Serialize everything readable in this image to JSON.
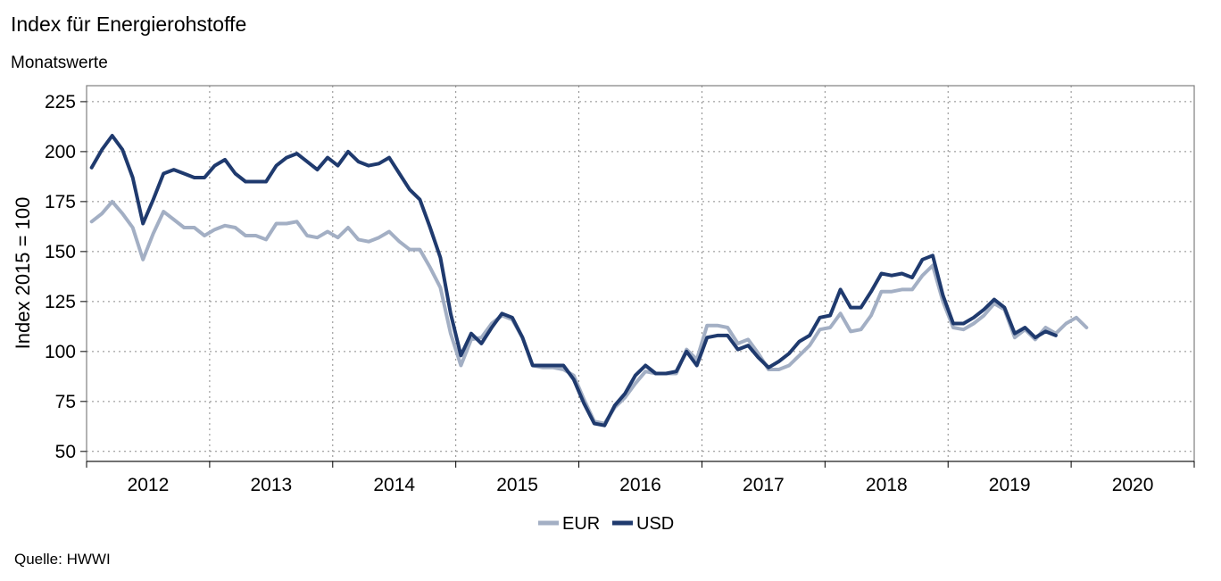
{
  "header": {
    "title": "Index für Energierohstoffe",
    "subtitle": "Monatswerte"
  },
  "footer": {
    "source": "Quelle: HWWI"
  },
  "chart_data": {
    "type": "line",
    "ylabel": "Index 2015 = 100",
    "ylim": [
      45,
      233
    ],
    "y_ticks": [
      50,
      75,
      100,
      125,
      150,
      175,
      200,
      225
    ],
    "x_range": [
      "2012-01",
      "2020-12"
    ],
    "x_tick_labels": [
      "2012",
      "2013",
      "2014",
      "2015",
      "2016",
      "2017",
      "2018",
      "2019",
      "2020"
    ],
    "grid": true,
    "legend_position": "bottom-center",
    "series": [
      {
        "name": "EUR",
        "color": "#a3afc4",
        "start": "2012-01",
        "values": [
          165,
          169,
          175,
          169,
          162,
          146,
          159,
          170,
          166,
          162,
          162,
          158,
          161,
          163,
          162,
          158,
          158,
          156,
          164,
          164,
          165,
          158,
          157,
          160,
          157,
          162,
          156,
          155,
          157,
          160,
          155,
          151,
          151,
          142,
          132,
          109,
          93,
          106,
          107,
          114,
          118,
          116,
          107,
          93,
          92,
          92,
          91,
          88,
          76,
          65,
          64,
          72,
          77,
          84,
          90,
          89,
          89,
          89,
          101,
          96,
          113,
          113,
          112,
          104,
          106,
          99,
          91,
          91,
          93,
          98,
          103,
          111,
          112,
          119,
          110,
          111,
          118,
          130,
          130,
          131,
          131,
          138,
          143,
          125,
          112,
          111,
          114,
          118,
          124,
          121,
          107,
          111,
          106,
          112,
          109,
          114,
          117,
          112
        ]
      },
      {
        "name": "USD",
        "color": "#1f3a6e",
        "start": "2012-01",
        "values": [
          192,
          201,
          208,
          201,
          187,
          164,
          176,
          189,
          191,
          189,
          187,
          187,
          193,
          196,
          189,
          185,
          185,
          185,
          193,
          197,
          199,
          195,
          191,
          197,
          193,
          200,
          195,
          193,
          194,
          197,
          189,
          181,
          176,
          162,
          147,
          119,
          98,
          109,
          104,
          112,
          119,
          117,
          107,
          93,
          93,
          93,
          93,
          86,
          74,
          64,
          63,
          73,
          79,
          88,
          93,
          89,
          89,
          90,
          100,
          93,
          107,
          108,
          108,
          101,
          103,
          97,
          92,
          95,
          99,
          105,
          108,
          117,
          118,
          131,
          122,
          122,
          130,
          139,
          138,
          139,
          137,
          146,
          148,
          128,
          114,
          114,
          117,
          121,
          126,
          122,
          109,
          112,
          107,
          110,
          108,
          null,
          null,
          null
        ]
      }
    ]
  }
}
